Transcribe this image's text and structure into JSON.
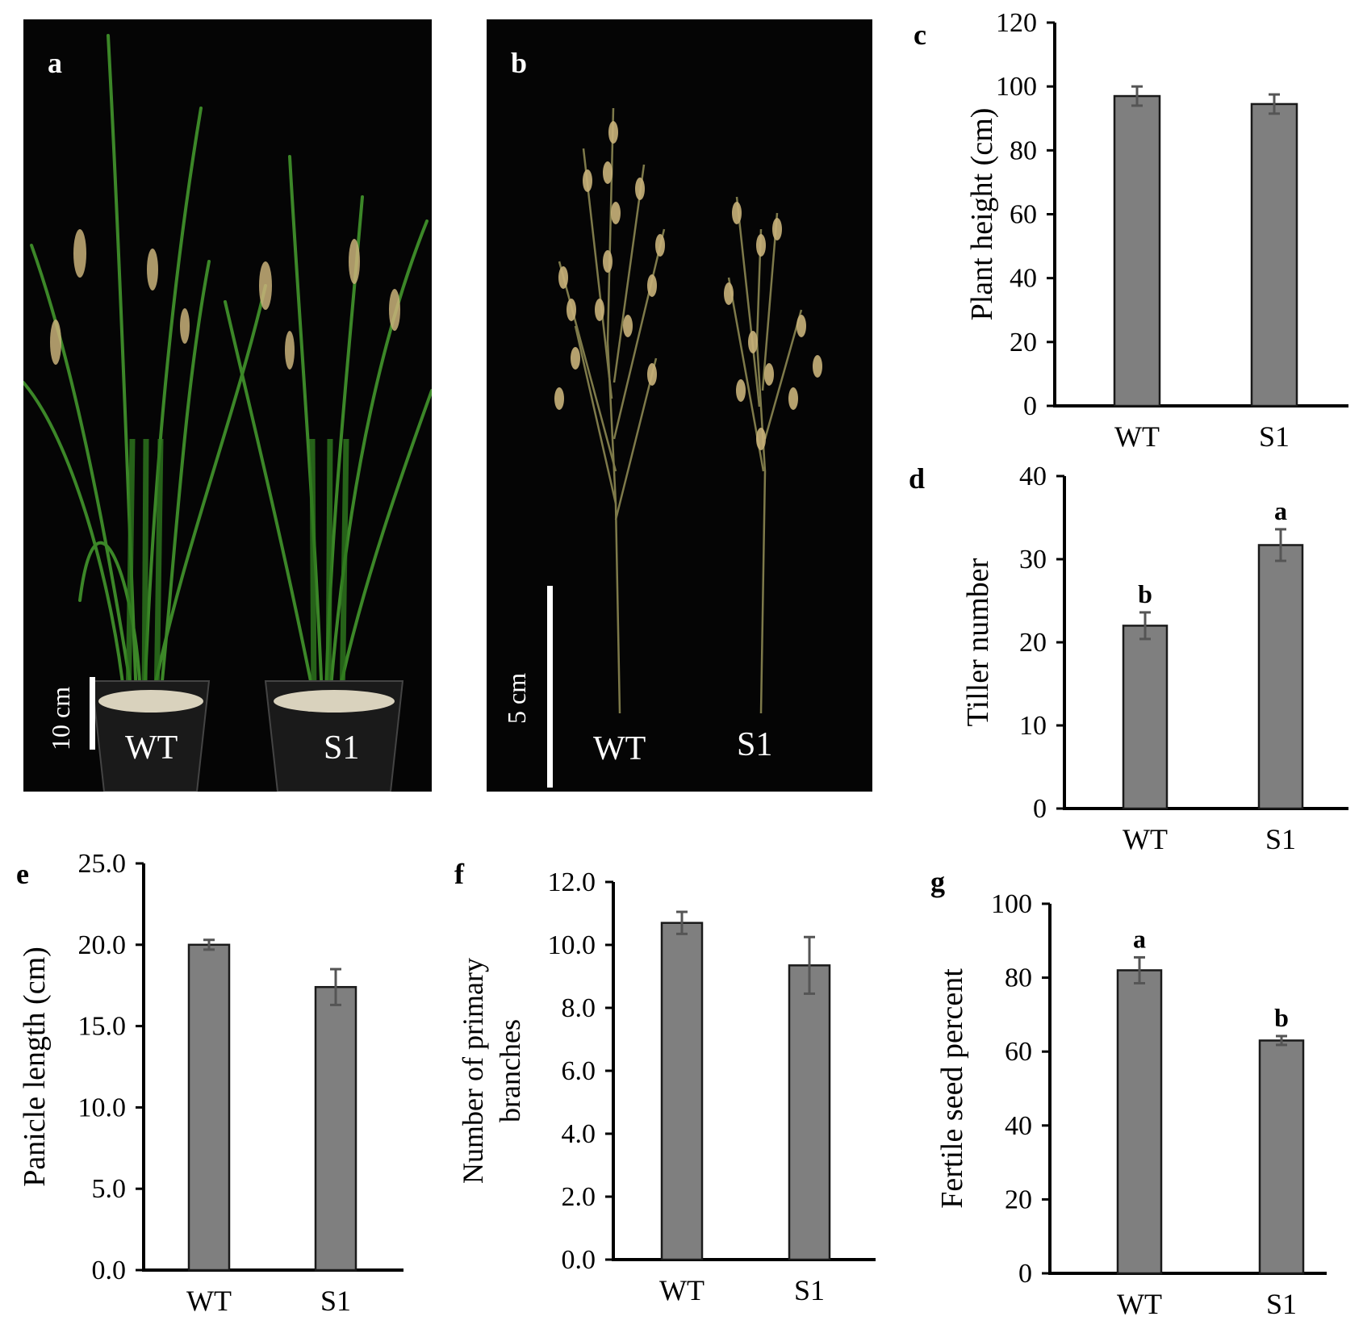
{
  "panels": {
    "a": {
      "letter": "a",
      "labels": [
        "WT",
        "S1"
      ],
      "scale": "10 cm"
    },
    "b": {
      "letter": "b",
      "labels": [
        "WT",
        "S1"
      ],
      "scale": "5 cm"
    }
  },
  "colors": {
    "bar": "#7f7f7f",
    "bar_edge": "#1a1a1a",
    "error": "#555555",
    "photo_bg": "#050505",
    "leaf": "#3f8f2a",
    "grain": "#c9b27a"
  },
  "icons": {
    "photo_a": "rice-plants-photo",
    "photo_b": "rice-panicles-photo"
  },
  "chart_data": [
    {
      "id": "c",
      "letter": "c",
      "type": "bar",
      "categories": [
        "WT",
        "S1"
      ],
      "values": [
        97,
        94.5
      ],
      "errors": [
        3,
        3
      ],
      "sig": [
        "",
        ""
      ],
      "ylabel": "Plant height (cm)",
      "ylim": [
        0,
        120
      ],
      "ticks": [
        "0",
        "20",
        "40",
        "60",
        "80",
        "100",
        "120"
      ]
    },
    {
      "id": "d",
      "letter": "d",
      "type": "bar",
      "categories": [
        "WT",
        "S1"
      ],
      "values": [
        22,
        31.7
      ],
      "errors": [
        1.6,
        1.9
      ],
      "sig": [
        "b",
        "a"
      ],
      "ylabel": "Tiller number",
      "ylim": [
        0,
        40
      ],
      "ticks": [
        "0",
        "10",
        "20",
        "30",
        "40"
      ]
    },
    {
      "id": "e",
      "letter": "e",
      "type": "bar",
      "categories": [
        "WT",
        "S1"
      ],
      "values": [
        20.0,
        17.4
      ],
      "errors": [
        0.3,
        1.1
      ],
      "sig": [
        "",
        ""
      ],
      "ylabel": "Panicle length (cm)",
      "ylim": [
        0,
        25
      ],
      "ticks": [
        "0.0",
        "5.0",
        "10.0",
        "15.0",
        "20.0",
        "25.0"
      ]
    },
    {
      "id": "f",
      "letter": "f",
      "type": "bar",
      "categories": [
        "WT",
        "S1"
      ],
      "values": [
        10.7,
        9.35
      ],
      "errors": [
        0.35,
        0.9
      ],
      "sig": [
        "",
        ""
      ],
      "ylabel": [
        "Number of  primary",
        "branches"
      ],
      "ylim": [
        0,
        12
      ],
      "ticks": [
        "0.0",
        "2.0",
        "4.0",
        "6.0",
        "8.0",
        "10.0",
        "12.0"
      ]
    },
    {
      "id": "g",
      "letter": "g",
      "type": "bar",
      "categories": [
        "WT",
        "S1"
      ],
      "values": [
        82,
        63
      ],
      "errors": [
        3.5,
        1.2
      ],
      "sig": [
        "a",
        "b"
      ],
      "ylabel": "Fertile seed percent",
      "ylim": [
        0,
        100
      ],
      "ticks": [
        "0",
        "20",
        "40",
        "60",
        "80",
        "100"
      ]
    }
  ]
}
